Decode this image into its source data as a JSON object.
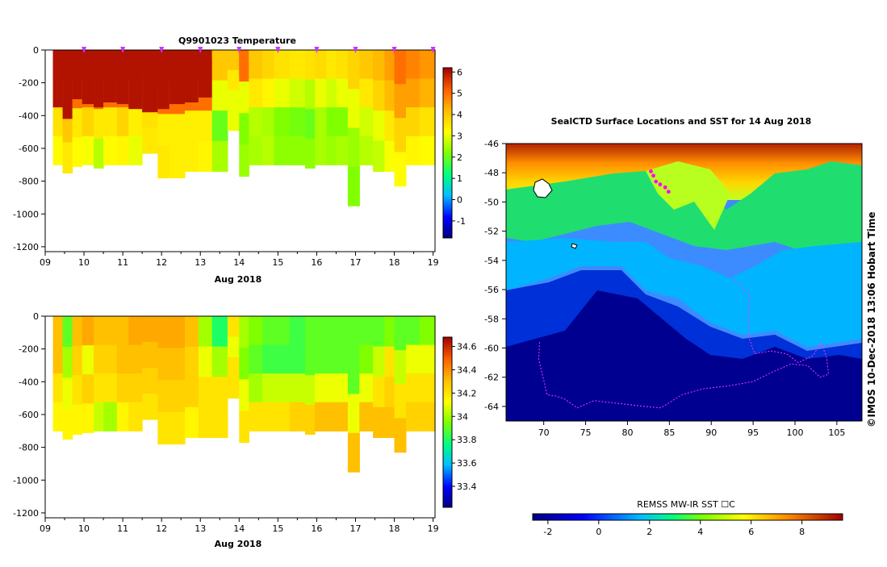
{
  "chart_data": [
    {
      "type": "heatmap",
      "title": "Q9901023  Temperature",
      "xlabel": "Aug 2018",
      "ylabel": "",
      "x_ticks": [
        "09",
        "10",
        "11",
        "12",
        "13",
        "14",
        "15",
        "16",
        "17",
        "18",
        "19"
      ],
      "x_range": [
        9,
        19.05
      ],
      "y_ticks": [
        "0",
        "-200",
        "-400",
        "-600",
        "-800",
        "-1000",
        "-1200"
      ],
      "ylim": [
        -1230,
        0
      ],
      "colorbar": {
        "ticks": [
          "6",
          "5",
          "4",
          "3",
          "2",
          "1",
          "0",
          "-1"
        ],
        "range": [
          -1.8,
          6.2
        ]
      },
      "surface_markers_day": [
        10,
        11,
        12,
        13,
        14,
        15,
        16,
        17,
        18,
        19
      ],
      "profiles": [
        {
          "x0": 9.2,
          "x1": 9.45,
          "depth": 700,
          "warm": 350,
          "v": [
            6,
            5,
            3.6,
            3.2
          ]
        },
        {
          "x0": 9.45,
          "x1": 9.7,
          "depth": 750,
          "warm": 420,
          "v": [
            6,
            5,
            4,
            3.5
          ]
        },
        {
          "x0": 9.7,
          "x1": 9.95,
          "depth": 710,
          "warm": 300,
          "v": [
            6,
            5,
            3.5,
            3.2
          ]
        },
        {
          "x0": 9.95,
          "x1": 10.25,
          "depth": 700,
          "warm": 330,
          "v": [
            6,
            5,
            3.8,
            3.1
          ]
        },
        {
          "x0": 10.25,
          "x1": 10.5,
          "depth": 720,
          "warm": 350,
          "v": [
            6,
            5,
            3.5,
            2.6
          ]
        },
        {
          "x0": 10.5,
          "x1": 10.85,
          "depth": 700,
          "warm": 320,
          "v": [
            6,
            5,
            3.5,
            3.2
          ]
        },
        {
          "x0": 10.85,
          "x1": 11.15,
          "depth": 700,
          "warm": 330,
          "v": [
            6,
            5,
            3.8,
            3.3
          ]
        },
        {
          "x0": 11.15,
          "x1": 11.5,
          "depth": 700,
          "warm": 360,
          "v": [
            6,
            5,
            3.4,
            3
          ]
        },
        {
          "x0": 11.5,
          "x1": 11.9,
          "depth": 630,
          "warm": 380,
          "v": [
            6,
            5,
            3.6,
            3.5
          ]
        },
        {
          "x0": 11.9,
          "x1": 12.2,
          "depth": 780,
          "warm": 360,
          "v": [
            6,
            5,
            3.4,
            3.5
          ]
        },
        {
          "x0": 12.2,
          "x1": 12.6,
          "depth": 780,
          "warm": 330,
          "v": [
            6,
            5,
            3.4,
            3.4
          ]
        },
        {
          "x0": 12.6,
          "x1": 12.95,
          "depth": 740,
          "warm": 320,
          "v": [
            6,
            5,
            3.4,
            3.4
          ]
        },
        {
          "x0": 12.95,
          "x1": 13.3,
          "depth": 740,
          "warm": 290,
          "v": [
            6,
            5,
            3.4,
            3.3
          ]
        },
        {
          "x0": 13.3,
          "x1": 13.7,
          "depth": 740,
          "warm": 50,
          "v": [
            4,
            3,
            2,
            2.5
          ]
        },
        {
          "x0": 13.7,
          "x1": 14.0,
          "depth": 490,
          "warm": 80,
          "v": [
            4,
            3.5,
            3,
            3
          ]
        },
        {
          "x0": 14.0,
          "x1": 14.25,
          "depth": 770,
          "warm": 160,
          "v": [
            5,
            3,
            2.2,
            2.4
          ]
        },
        {
          "x0": 14.25,
          "x1": 14.6,
          "depth": 700,
          "warm": 60,
          "v": [
            4,
            3.5,
            2.6,
            2.5
          ]
        },
        {
          "x0": 14.6,
          "x1": 14.9,
          "depth": 700,
          "warm": 50,
          "v": [
            3.8,
            3.3,
            2.5,
            2.6
          ]
        },
        {
          "x0": 14.9,
          "x1": 15.3,
          "depth": 700,
          "warm": 40,
          "v": [
            3.6,
            3,
            2.2,
            2.3
          ]
        },
        {
          "x0": 15.3,
          "x1": 15.7,
          "depth": 700,
          "warm": 30,
          "v": [
            3.5,
            2.8,
            2.1,
            2.3
          ]
        },
        {
          "x0": 15.7,
          "x1": 15.95,
          "depth": 720,
          "warm": 30,
          "v": [
            3.6,
            2.6,
            2,
            2.3
          ]
        },
        {
          "x0": 15.95,
          "x1": 16.25,
          "depth": 700,
          "warm": 20,
          "v": [
            3.7,
            3,
            2.5,
            2.5
          ]
        },
        {
          "x0": 16.25,
          "x1": 16.5,
          "depth": 700,
          "warm": 20,
          "v": [
            3.5,
            2.8,
            2.2,
            2.4
          ]
        },
        {
          "x0": 16.5,
          "x1": 16.8,
          "depth": 700,
          "warm": 20,
          "v": [
            3.6,
            3,
            2.2,
            2.5
          ]
        },
        {
          "x0": 16.8,
          "x1": 17.1,
          "depth": 950,
          "warm": 20,
          "v": [
            3.8,
            3,
            2.4,
            2.2
          ]
        },
        {
          "x0": 17.1,
          "x1": 17.45,
          "depth": 700,
          "warm": 30,
          "v": [
            4,
            3.5,
            2.8,
            2.6
          ]
        },
        {
          "x0": 17.45,
          "x1": 17.75,
          "depth": 740,
          "warm": 20,
          "v": [
            4.2,
            3.8,
            3,
            2.7
          ]
        },
        {
          "x0": 17.75,
          "x1": 18.0,
          "depth": 740,
          "warm": 60,
          "v": [
            4.5,
            4.2,
            3.5,
            3.1
          ]
        },
        {
          "x0": 18.0,
          "x1": 18.3,
          "depth": 830,
          "warm": 110,
          "v": [
            5,
            4.5,
            3.8,
            3.2
          ]
        },
        {
          "x0": 18.3,
          "x1": 18.65,
          "depth": 700,
          "warm": 60,
          "v": [
            4.8,
            4.5,
            3.8,
            3.3
          ]
        },
        {
          "x0": 18.65,
          "x1": 19.05,
          "depth": 700,
          "warm": 50,
          "v": [
            4.6,
            4.3,
            3.6,
            3.2
          ]
        }
      ]
    },
    {
      "type": "heatmap",
      "title": "",
      "xlabel": "Aug 2018",
      "ylabel": "",
      "x_ticks": [
        "09",
        "10",
        "11",
        "12",
        "13",
        "14",
        "15",
        "16",
        "17",
        "18",
        "19"
      ],
      "x_range": [
        9,
        19.05
      ],
      "y_ticks": [
        "0",
        "-200",
        "-400",
        "-600",
        "-800",
        "-1000",
        "-1200"
      ],
      "ylim": [
        -1230,
        0
      ],
      "colorbar": {
        "ticks": [
          "34.6",
          "34.4",
          "34.2",
          "34",
          "33.8",
          "33.6",
          "33.4"
        ],
        "range": [
          33.22,
          34.68
        ]
      },
      "profiles": [
        {
          "x0": 9.2,
          "x1": 9.45,
          "depth": 700,
          "v": [
            34.3,
            34.3,
            34.2,
            34.15
          ]
        },
        {
          "x0": 9.45,
          "x1": 9.7,
          "depth": 750,
          "v": [
            33.9,
            34.0,
            34.1,
            34.15
          ]
        },
        {
          "x0": 9.7,
          "x1": 9.95,
          "depth": 720,
          "v": [
            34.3,
            34.25,
            34.2,
            34.15
          ]
        },
        {
          "x0": 9.95,
          "x1": 10.25,
          "depth": 710,
          "v": [
            34.35,
            34.1,
            34.25,
            34.15
          ]
        },
        {
          "x0": 10.25,
          "x1": 10.5,
          "depth": 700,
          "v": [
            34.3,
            34.25,
            34.2,
            34.05
          ]
        },
        {
          "x0": 10.5,
          "x1": 10.85,
          "depth": 700,
          "v": [
            34.3,
            34.25,
            34.2,
            34.0
          ]
        },
        {
          "x0": 10.85,
          "x1": 11.15,
          "depth": 700,
          "v": [
            34.3,
            34.3,
            34.25,
            34.15
          ]
        },
        {
          "x0": 11.15,
          "x1": 11.5,
          "depth": 700,
          "v": [
            34.35,
            34.3,
            34.25,
            34.2
          ]
        },
        {
          "x0": 11.5,
          "x1": 11.9,
          "depth": 630,
          "v": [
            34.35,
            34.3,
            34.25,
            34.2
          ]
        },
        {
          "x0": 11.9,
          "x1": 12.2,
          "depth": 780,
          "v": [
            34.35,
            34.3,
            34.25,
            34.2
          ]
        },
        {
          "x0": 12.2,
          "x1": 12.6,
          "depth": 780,
          "v": [
            34.35,
            34.3,
            34.25,
            34.2
          ]
        },
        {
          "x0": 12.6,
          "x1": 12.95,
          "depth": 740,
          "v": [
            34.3,
            34.25,
            34.25,
            34.15
          ]
        },
        {
          "x0": 12.95,
          "x1": 13.3,
          "depth": 740,
          "v": [
            34.0,
            34.1,
            34.2,
            34.2
          ]
        },
        {
          "x0": 13.3,
          "x1": 13.7,
          "depth": 740,
          "v": [
            33.8,
            34.0,
            34.2,
            34.2
          ]
        },
        {
          "x0": 13.7,
          "x1": 14.0,
          "depth": 500,
          "v": [
            34.2,
            34.1,
            34.2,
            34.2
          ]
        },
        {
          "x0": 14.0,
          "x1": 14.25,
          "depth": 770,
          "v": [
            34.0,
            33.95,
            34.1,
            34.2
          ]
        },
        {
          "x0": 14.25,
          "x1": 14.6,
          "depth": 700,
          "v": [
            33.95,
            33.9,
            34.0,
            34.2
          ]
        },
        {
          "x0": 14.6,
          "x1": 14.9,
          "depth": 700,
          "v": [
            33.9,
            33.85,
            34.05,
            34.2
          ]
        },
        {
          "x0": 14.9,
          "x1": 15.3,
          "depth": 700,
          "v": [
            33.9,
            33.85,
            34.05,
            34.2
          ]
        },
        {
          "x0": 15.3,
          "x1": 15.7,
          "depth": 700,
          "v": [
            33.85,
            33.85,
            34.05,
            34.25
          ]
        },
        {
          "x0": 15.7,
          "x1": 15.95,
          "depth": 720,
          "v": [
            33.9,
            33.9,
            34.05,
            34.25
          ]
        },
        {
          "x0": 15.95,
          "x1": 16.25,
          "depth": 700,
          "v": [
            33.9,
            33.9,
            34.1,
            34.3
          ]
        },
        {
          "x0": 16.25,
          "x1": 16.5,
          "depth": 700,
          "v": [
            33.9,
            33.9,
            34.1,
            34.3
          ]
        },
        {
          "x0": 16.5,
          "x1": 16.8,
          "depth": 700,
          "v": [
            33.9,
            33.9,
            34.1,
            34.3
          ]
        },
        {
          "x0": 16.8,
          "x1": 17.1,
          "depth": 950,
          "v": [
            33.9,
            33.9,
            34.1,
            34.3
          ]
        },
        {
          "x0": 17.1,
          "x1": 17.45,
          "depth": 700,
          "v": [
            33.9,
            33.95,
            34.1,
            34.3
          ]
        },
        {
          "x0": 17.45,
          "x1": 17.75,
          "depth": 740,
          "v": [
            33.9,
            34.05,
            34.2,
            34.3
          ]
        },
        {
          "x0": 17.75,
          "x1": 18.0,
          "depth": 740,
          "v": [
            33.95,
            34.2,
            34.25,
            34.3
          ]
        },
        {
          "x0": 18.0,
          "x1": 18.3,
          "depth": 830,
          "v": [
            33.9,
            34.05,
            34.2,
            34.3
          ]
        },
        {
          "x0": 18.3,
          "x1": 18.65,
          "depth": 700,
          "v": [
            33.9,
            34.1,
            34.2,
            34.25
          ]
        },
        {
          "x0": 18.65,
          "x1": 19.05,
          "depth": 700,
          "v": [
            33.95,
            34.1,
            34.2,
            34.25
          ]
        }
      ]
    },
    {
      "type": "heatmap",
      "title": "SealCTD Surface Locations and SST for 14 Aug 2018",
      "xlabel": "",
      "ylabel": "",
      "x_ticks": [
        "70",
        "75",
        "80",
        "85",
        "90",
        "95",
        "100",
        "105"
      ],
      "xlim": [
        65.5,
        108
      ],
      "y_ticks": [
        "-46",
        "-48",
        "-50",
        "-52",
        "-54",
        "-56",
        "-58",
        "-60",
        "-62",
        "-64"
      ],
      "ylim": [
        -65,
        -46
      ],
      "colorbar": {
        "label": "REMSS MW-IR SST ☐C",
        "ticks": [
          "-2",
          "0",
          "2",
          "4",
          "6",
          "8"
        ],
        "range": [
          -2.6,
          9.6
        ]
      },
      "sst_zones": [
        {
          "band": "north",
          "value": 8,
          "lat_range": [
            -46,
            -48.5
          ]
        },
        {
          "band": "front",
          "value": 4.5,
          "lat_range": [
            -48.5,
            -52.5
          ]
        },
        {
          "band": "subantarctic",
          "value": 2.5,
          "lat_range": [
            -52.5,
            -56
          ]
        },
        {
          "band": "southern",
          "value": 0.5,
          "lat_range": [
            -56,
            -60
          ]
        },
        {
          "band": "polar",
          "value": -1.8,
          "lat_range": [
            -60,
            -65
          ]
        }
      ],
      "seal_track": [
        [
          82.8,
          -47.9
        ],
        [
          83.1,
          -48.2
        ],
        [
          83.4,
          -48.6
        ],
        [
          83.9,
          -48.8
        ],
        [
          84.5,
          -49.0
        ],
        [
          84.9,
          -49.3
        ]
      ],
      "coastline": [
        [
          69.5,
          -59.6
        ],
        [
          69.4,
          -60.8
        ],
        [
          70,
          -62.2
        ],
        [
          70.4,
          -63.2
        ],
        [
          71.5,
          -63.3
        ],
        [
          72.5,
          -63.5
        ],
        [
          74,
          -64.1
        ],
        [
          76,
          -63.6
        ],
        [
          79,
          -63.8
        ],
        [
          82,
          -64.0
        ],
        [
          84,
          -64.1
        ],
        [
          86.5,
          -63.2
        ],
        [
          89,
          -62.8
        ],
        [
          92,
          -62.6
        ],
        [
          95,
          -62.3
        ],
        [
          97.5,
          -61.6
        ],
        [
          99.5,
          -61.1
        ],
        [
          101.5,
          -61.2
        ],
        [
          103,
          -62.0
        ],
        [
          104,
          -61.8
        ],
        [
          103.8,
          -60.7
        ],
        [
          103.1,
          -59.6
        ],
        [
          102.2,
          -60.5
        ],
        [
          100.4,
          -61.0
        ],
        [
          99,
          -60.4
        ],
        [
          97.1,
          -60.2
        ],
        [
          95.2,
          -60.4
        ],
        [
          94.5,
          -59.3
        ],
        [
          94.4,
          -57.8
        ],
        [
          94.6,
          -56.4
        ],
        [
          93.4,
          -55.7
        ],
        [
          92.5,
          -55.3
        ]
      ],
      "annotation": "IMOS 10-Dec-2018 13:06 Hobart Time",
      "copyright": "©"
    }
  ]
}
